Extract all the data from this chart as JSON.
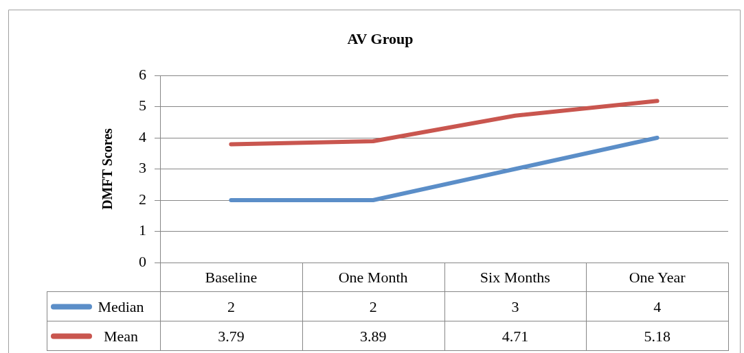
{
  "chart_data": {
    "type": "line",
    "title": "AV Group",
    "ylabel": "DMFT Scores",
    "categories": [
      "Baseline",
      "One Month",
      "Six Months",
      "One Year"
    ],
    "series": [
      {
        "name": "Median",
        "color": "#5b8ec8",
        "values": [
          2,
          2,
          3,
          4
        ]
      },
      {
        "name": "Mean",
        "color": "#c9564f",
        "values": [
          3.79,
          3.89,
          4.71,
          5.18
        ]
      }
    ],
    "ylim": [
      0,
      6
    ],
    "yticks": [
      0,
      1,
      2,
      3,
      4,
      5,
      6
    ],
    "grid": "y",
    "legend": "bottom left",
    "data_labels": true,
    "marker": "none"
  }
}
